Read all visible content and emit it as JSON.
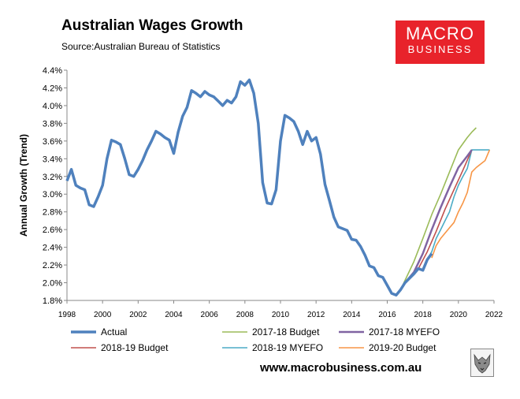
{
  "header": {
    "title": "Australian Wages Growth",
    "source": "Source:Australian Bureau of Statistics"
  },
  "logo": {
    "main": "MACRO",
    "sub": "BUSINESS",
    "color": "#e8232b"
  },
  "footer": {
    "url": "www.macrobusiness.com.au",
    "icon": "wolf-logo-icon"
  },
  "chart_data": {
    "type": "line",
    "title": "",
    "xlabel": "",
    "ylabel": "Annual Growth (Trend)",
    "xlim": [
      1998,
      2022
    ],
    "ylim": [
      1.8,
      4.4
    ],
    "xticks": [
      "1998",
      "2000",
      "2002",
      "2004",
      "2006",
      "2008",
      "2010",
      "2012",
      "2014",
      "2016",
      "2018",
      "2020",
      "2022"
    ],
    "yticks": [
      "1.8%",
      "2.0%",
      "2.2%",
      "2.4%",
      "2.6%",
      "2.8%",
      "3.0%",
      "3.2%",
      "3.4%",
      "3.6%",
      "3.8%",
      "4.0%",
      "4.2%",
      "4.4%"
    ],
    "grid": false,
    "legend_position": "bottom",
    "series": [
      {
        "name": "Actual",
        "color": "#4f81bd",
        "points": [
          [
            1998.0,
            3.15
          ],
          [
            1998.25,
            3.28
          ],
          [
            1998.5,
            3.1
          ],
          [
            1998.75,
            3.07
          ],
          [
            1999.0,
            3.05
          ],
          [
            1999.25,
            2.88
          ],
          [
            1999.5,
            2.86
          ],
          [
            1999.75,
            2.97
          ],
          [
            2000.0,
            3.1
          ],
          [
            2000.25,
            3.4
          ],
          [
            2000.5,
            3.61
          ],
          [
            2000.75,
            3.59
          ],
          [
            2001.0,
            3.56
          ],
          [
            2001.25,
            3.4
          ],
          [
            2001.5,
            3.22
          ],
          [
            2001.75,
            3.2
          ],
          [
            2002.0,
            3.28
          ],
          [
            2002.25,
            3.38
          ],
          [
            2002.5,
            3.5
          ],
          [
            2002.75,
            3.6
          ],
          [
            2003.0,
            3.71
          ],
          [
            2003.25,
            3.68
          ],
          [
            2003.5,
            3.64
          ],
          [
            2003.75,
            3.61
          ],
          [
            2004.0,
            3.46
          ],
          [
            2004.25,
            3.7
          ],
          [
            2004.5,
            3.88
          ],
          [
            2004.75,
            3.98
          ],
          [
            2005.0,
            4.17
          ],
          [
            2005.25,
            4.14
          ],
          [
            2005.5,
            4.1
          ],
          [
            2005.75,
            4.16
          ],
          [
            2006.0,
            4.12
          ],
          [
            2006.25,
            4.1
          ],
          [
            2006.5,
            4.05
          ],
          [
            2006.75,
            4.0
          ],
          [
            2007.0,
            4.06
          ],
          [
            2007.25,
            4.03
          ],
          [
            2007.5,
            4.1
          ],
          [
            2007.75,
            4.27
          ],
          [
            2008.0,
            4.23
          ],
          [
            2008.25,
            4.29
          ],
          [
            2008.5,
            4.14
          ],
          [
            2008.75,
            3.8
          ],
          [
            2009.0,
            3.13
          ],
          [
            2009.25,
            2.9
          ],
          [
            2009.5,
            2.89
          ],
          [
            2009.75,
            3.05
          ],
          [
            2010.0,
            3.6
          ],
          [
            2010.25,
            3.89
          ],
          [
            2010.5,
            3.86
          ],
          [
            2010.75,
            3.82
          ],
          [
            2011.0,
            3.71
          ],
          [
            2011.25,
            3.56
          ],
          [
            2011.5,
            3.71
          ],
          [
            2011.75,
            3.6
          ],
          [
            2012.0,
            3.64
          ],
          [
            2012.25,
            3.45
          ],
          [
            2012.5,
            3.11
          ],
          [
            2012.75,
            2.93
          ],
          [
            2013.0,
            2.74
          ],
          [
            2013.25,
            2.63
          ],
          [
            2013.5,
            2.61
          ],
          [
            2013.75,
            2.59
          ],
          [
            2014.0,
            2.49
          ],
          [
            2014.25,
            2.48
          ],
          [
            2014.5,
            2.41
          ],
          [
            2014.75,
            2.31
          ],
          [
            2015.0,
            2.19
          ],
          [
            2015.25,
            2.17
          ],
          [
            2015.5,
            2.08
          ],
          [
            2015.75,
            2.06
          ],
          [
            2016.0,
            1.97
          ],
          [
            2016.25,
            1.88
          ],
          [
            2016.5,
            1.86
          ],
          [
            2016.75,
            1.92
          ],
          [
            2017.0,
            2.0
          ],
          [
            2017.25,
            2.05
          ],
          [
            2017.5,
            2.1
          ],
          [
            2017.75,
            2.16
          ],
          [
            2018.0,
            2.14
          ],
          [
            2018.25,
            2.26
          ],
          [
            2018.5,
            2.33
          ]
        ]
      },
      {
        "name": "2017-18 Budget",
        "color": "#9bbb59",
        "points": [
          [
            2016.75,
            1.92
          ],
          [
            2017.5,
            2.24
          ],
          [
            2018.0,
            2.5
          ],
          [
            2018.5,
            2.77
          ],
          [
            2019.0,
            3.0
          ],
          [
            2019.5,
            3.25
          ],
          [
            2020.0,
            3.5
          ],
          [
            2020.5,
            3.64
          ],
          [
            2020.75,
            3.7
          ],
          [
            2021.0,
            3.75
          ]
        ]
      },
      {
        "name": "2017-18 MYEFO",
        "color": "#8064a2",
        "points": [
          [
            2016.75,
            1.92
          ],
          [
            2017.0,
            2.0
          ],
          [
            2017.5,
            2.12
          ],
          [
            2018.0,
            2.33
          ],
          [
            2018.5,
            2.6
          ],
          [
            2019.0,
            2.85
          ],
          [
            2019.5,
            3.08
          ],
          [
            2020.0,
            3.3
          ],
          [
            2020.5,
            3.43
          ],
          [
            2020.75,
            3.5
          ]
        ]
      },
      {
        "name": "2018-19 Budget",
        "color": "#c0504d",
        "points": [
          [
            2017.75,
            2.16
          ],
          [
            2018.25,
            2.35
          ],
          [
            2018.75,
            2.58
          ],
          [
            2019.25,
            2.83
          ],
          [
            2019.75,
            3.05
          ],
          [
            2020.25,
            3.27
          ],
          [
            2020.75,
            3.5
          ]
        ]
      },
      {
        "name": "2018-19 MYEFO",
        "color": "#4bacc6",
        "points": [
          [
            2018.25,
            2.26
          ],
          [
            2018.5,
            2.35
          ],
          [
            2018.75,
            2.5
          ],
          [
            2019.0,
            2.6
          ],
          [
            2019.25,
            2.7
          ],
          [
            2019.5,
            2.8
          ],
          [
            2019.75,
            2.97
          ],
          [
            2020.0,
            3.1
          ],
          [
            2020.25,
            3.2
          ],
          [
            2020.5,
            3.29
          ],
          [
            2020.75,
            3.5
          ],
          [
            2021.0,
            3.5
          ],
          [
            2021.75,
            3.5
          ]
        ]
      },
      {
        "name": "2019-20 Budget",
        "color": "#f79646",
        "points": [
          [
            2018.5,
            2.28
          ],
          [
            2018.75,
            2.42
          ],
          [
            2019.0,
            2.5
          ],
          [
            2019.25,
            2.56
          ],
          [
            2019.5,
            2.62
          ],
          [
            2019.75,
            2.68
          ],
          [
            2020.0,
            2.8
          ],
          [
            2020.25,
            2.9
          ],
          [
            2020.5,
            3.02
          ],
          [
            2020.75,
            3.25
          ],
          [
            2021.0,
            3.3
          ],
          [
            2021.25,
            3.34
          ],
          [
            2021.5,
            3.38
          ],
          [
            2021.75,
            3.5
          ]
        ]
      }
    ]
  }
}
